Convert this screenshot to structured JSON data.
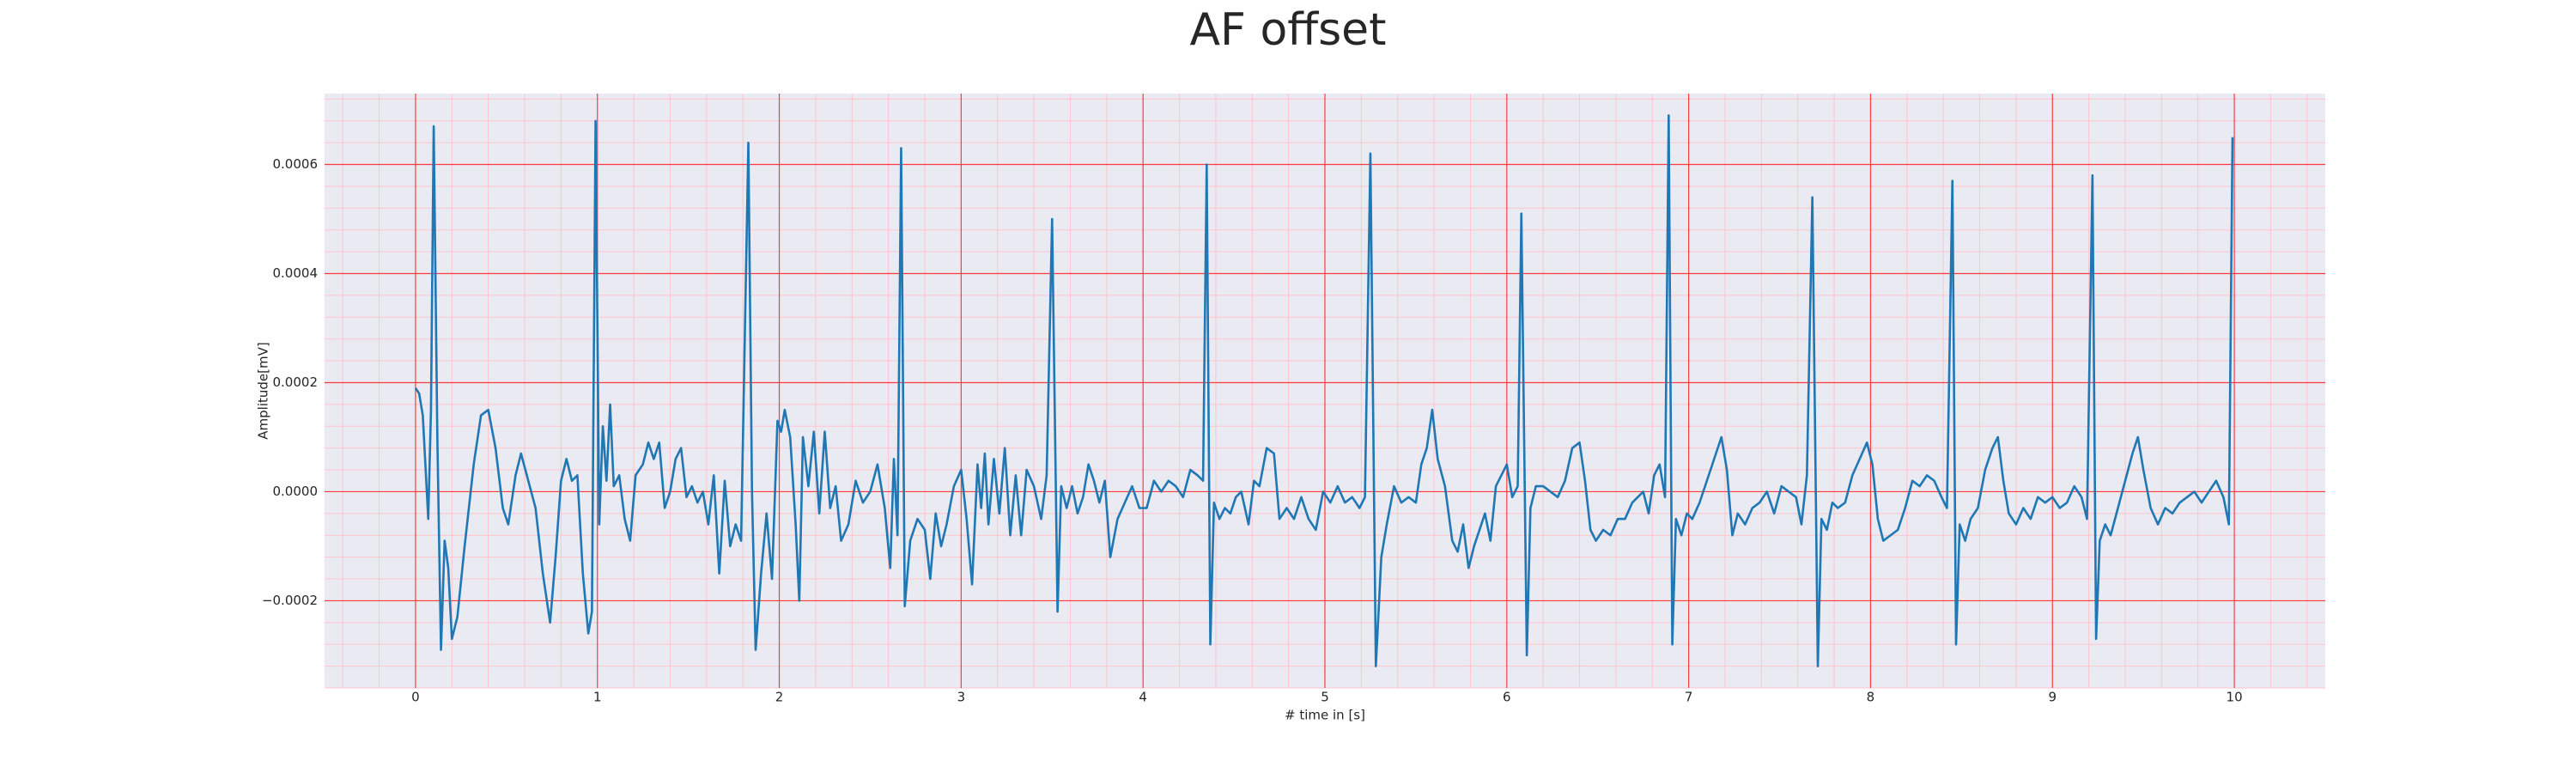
{
  "chart_data": {
    "type": "line",
    "title": "AF offset",
    "xlabel": "# time in [s]",
    "ylabel": "Amplitude[mV]",
    "color": "#1f77b4",
    "background": "#eaeaf2",
    "grid": true,
    "grid_color": "#ff3b3b",
    "minor_grid": true,
    "minor_grid_color": "#ffc4cc",
    "xlim": [
      -0.5,
      10.5
    ],
    "xticks": [
      0,
      1,
      2,
      3,
      4,
      5,
      6,
      7,
      8,
      9,
      10
    ],
    "ylim": [
      -0.00036,
      0.00073
    ],
    "yticks": [
      {
        "value": -0.0002,
        "label": "−0.0002"
      },
      {
        "value": 0,
        "label": "0.0000"
      },
      {
        "value": 0.0002,
        "label": "0.0002"
      },
      {
        "value": 0.0004,
        "label": "0.0004"
      },
      {
        "value": 0.0006,
        "label": "0.0006"
      }
    ],
    "x": [
      0.0,
      0.02,
      0.04,
      0.07,
      0.085,
      0.1,
      0.12,
      0.14,
      0.16,
      0.18,
      0.2,
      0.23,
      0.27,
      0.32,
      0.36,
      0.4,
      0.44,
      0.48,
      0.51,
      0.55,
      0.58,
      0.62,
      0.66,
      0.7,
      0.74,
      0.77,
      0.8,
      0.83,
      0.86,
      0.89,
      0.92,
      0.95,
      0.97,
      0.99,
      1.01,
      1.03,
      1.05,
      1.07,
      1.09,
      1.12,
      1.15,
      1.18,
      1.21,
      1.25,
      1.28,
      1.31,
      1.34,
      1.37,
      1.4,
      1.43,
      1.46,
      1.49,
      1.52,
      1.55,
      1.58,
      1.61,
      1.64,
      1.67,
      1.7,
      1.73,
      1.76,
      1.79,
      1.83,
      1.85,
      1.87,
      1.9,
      1.93,
      1.96,
      1.99,
      2.01,
      2.03,
      2.06,
      2.09,
      2.11,
      2.13,
      2.16,
      2.19,
      2.22,
      2.25,
      2.28,
      2.31,
      2.34,
      2.38,
      2.42,
      2.46,
      2.5,
      2.54,
      2.58,
      2.61,
      2.63,
      2.65,
      2.67,
      2.69,
      2.72,
      2.76,
      2.8,
      2.83,
      2.86,
      2.89,
      2.92,
      2.96,
      3.0,
      3.03,
      3.06,
      3.09,
      3.11,
      3.13,
      3.15,
      3.18,
      3.21,
      3.24,
      3.27,
      3.3,
      3.33,
      3.36,
      3.4,
      3.44,
      3.47,
      3.5,
      3.53,
      3.55,
      3.58,
      3.61,
      3.64,
      3.67,
      3.7,
      3.73,
      3.76,
      3.79,
      3.82,
      3.86,
      3.9,
      3.94,
      3.98,
      4.02,
      4.06,
      4.1,
      4.14,
      4.18,
      4.22,
      4.26,
      4.3,
      4.33,
      4.35,
      4.37,
      4.39,
      4.42,
      4.45,
      4.48,
      4.51,
      4.54,
      4.58,
      4.61,
      4.64,
      4.68,
      4.72,
      4.75,
      4.79,
      4.83,
      4.87,
      4.91,
      4.95,
      4.99,
      5.03,
      5.07,
      5.11,
      5.15,
      5.19,
      5.22,
      5.25,
      5.28,
      5.31,
      5.34,
      5.38,
      5.42,
      5.46,
      5.5,
      5.53,
      5.56,
      5.59,
      5.62,
      5.66,
      5.7,
      5.73,
      5.76,
      5.79,
      5.82,
      5.85,
      5.88,
      5.91,
      5.94,
      5.97,
      6.0,
      6.03,
      6.06,
      6.08,
      6.11,
      6.13,
      6.16,
      6.2,
      6.24,
      6.28,
      6.32,
      6.36,
      6.4,
      6.43,
      6.46,
      6.49,
      6.53,
      6.57,
      6.61,
      6.65,
      6.69,
      6.72,
      6.75,
      6.78,
      6.81,
      6.84,
      6.87,
      6.89,
      6.91,
      6.93,
      6.96,
      6.99,
      7.02,
      7.06,
      7.1,
      7.14,
      7.18,
      7.21,
      7.24,
      7.27,
      7.31,
      7.35,
      7.39,
      7.43,
      7.47,
      7.51,
      7.55,
      7.59,
      7.62,
      7.65,
      7.68,
      7.71,
      7.73,
      7.76,
      7.79,
      7.82,
      7.86,
      7.9,
      7.94,
      7.98,
      8.01,
      8.04,
      8.07,
      8.11,
      8.15,
      8.19,
      8.23,
      8.27,
      8.31,
      8.35,
      8.39,
      8.42,
      8.45,
      8.47,
      8.49,
      8.52,
      8.55,
      8.59,
      8.63,
      8.67,
      8.7,
      8.73,
      8.76,
      8.8,
      8.84,
      8.88,
      8.92,
      8.96,
      9.0,
      9.04,
      9.08,
      9.12,
      9.16,
      9.19,
      9.22,
      9.24,
      9.26,
      9.29,
      9.32,
      9.36,
      9.4,
      9.44,
      9.47,
      9.5,
      9.54,
      9.58,
      9.62,
      9.66,
      9.7,
      9.74,
      9.78,
      9.82,
      9.86,
      9.9,
      9.94,
      9.97,
      9.99
    ],
    "values": [
      0.00019,
      0.00018,
      0.00014,
      -5e-05,
      0.00015,
      0.00067,
      0.0001,
      -0.00029,
      -9e-05,
      -0.00014,
      -0.00027,
      -0.00023,
      -0.0001,
      5e-05,
      0.00014,
      0.00015,
      8e-05,
      -3e-05,
      -6e-05,
      3e-05,
      7e-05,
      2e-05,
      -3e-05,
      -0.00015,
      -0.00024,
      -0.00012,
      2e-05,
      6e-05,
      2e-05,
      3e-05,
      -0.00015,
      -0.00026,
      -0.00022,
      0.00068,
      -6e-05,
      0.00012,
      2e-05,
      0.00016,
      1e-05,
      3e-05,
      -5e-05,
      -9e-05,
      3e-05,
      5e-05,
      9e-05,
      6e-05,
      9e-05,
      -3e-05,
      0,
      6e-05,
      8e-05,
      -1e-05,
      1e-05,
      -2e-05,
      0,
      -6e-05,
      3e-05,
      -0.00015,
      2e-05,
      -0.0001,
      -6e-05,
      -9e-05,
      0.00064,
      0,
      -0.00029,
      -0.00015,
      -4e-05,
      -0.00016,
      0.00013,
      0.00011,
      0.00015,
      0.0001,
      -6e-05,
      -0.0002,
      0.0001,
      1e-05,
      0.00011,
      -4e-05,
      0.00011,
      -3e-05,
      1e-05,
      -9e-05,
      -6e-05,
      2e-05,
      -2e-05,
      0,
      5e-05,
      -3e-05,
      -0.00014,
      6e-05,
      -8e-05,
      0.00063,
      -0.00021,
      -9e-05,
      -5e-05,
      -7e-05,
      -0.00016,
      -4e-05,
      -0.0001,
      -6e-05,
      1e-05,
      4e-05,
      -5e-05,
      -0.00017,
      5e-05,
      -3e-05,
      7e-05,
      -6e-05,
      6e-05,
      -4e-05,
      8e-05,
      -8e-05,
      3e-05,
      -8e-05,
      4e-05,
      1e-05,
      -5e-05,
      3e-05,
      0.0005,
      -0.00022,
      1e-05,
      -3e-05,
      1e-05,
      -4e-05,
      -1e-05,
      5e-05,
      2e-05,
      -2e-05,
      2e-05,
      -0.00012,
      -5e-05,
      -2e-05,
      1e-05,
      -3e-05,
      -3e-05,
      2e-05,
      0,
      2e-05,
      1e-05,
      -1e-05,
      4e-05,
      3e-05,
      2e-05,
      0.0006,
      -0.00028,
      -2e-05,
      -5e-05,
      -3e-05,
      -4e-05,
      -1e-05,
      0,
      -6e-05,
      2e-05,
      1e-05,
      8e-05,
      7e-05,
      -5e-05,
      -3e-05,
      -5e-05,
      -1e-05,
      -5e-05,
      -7e-05,
      0,
      -2e-05,
      1e-05,
      -2e-05,
      -1e-05,
      -3e-05,
      -1e-05,
      0.00062,
      -0.00032,
      -0.00012,
      -6e-05,
      1e-05,
      -2e-05,
      -1e-05,
      -2e-05,
      5e-05,
      8e-05,
      0.00015,
      6e-05,
      1e-05,
      -9e-05,
      -0.00011,
      -6e-05,
      -0.00014,
      -0.0001,
      -7e-05,
      -4e-05,
      -9e-05,
      1e-05,
      3e-05,
      5e-05,
      -1e-05,
      1e-05,
      0.00051,
      -0.0003,
      -3e-05,
      1e-05,
      1e-05,
      0,
      -1e-05,
      2e-05,
      8e-05,
      9e-05,
      2e-05,
      -7e-05,
      -9e-05,
      -7e-05,
      -8e-05,
      -5e-05,
      -5e-05,
      -2e-05,
      -1e-05,
      0,
      -4e-05,
      3e-05,
      5e-05,
      -1e-05,
      0.00069,
      -0.00028,
      -5e-05,
      -8e-05,
      -4e-05,
      -5e-05,
      -2e-05,
      2e-05,
      6e-05,
      0.0001,
      4e-05,
      -8e-05,
      -4e-05,
      -6e-05,
      -3e-05,
      -2e-05,
      0,
      -4e-05,
      1e-05,
      0,
      -1e-05,
      -6e-05,
      3e-05,
      0.00054,
      -0.00032,
      -5e-05,
      -7e-05,
      -2e-05,
      -3e-05,
      -2e-05,
      3e-05,
      6e-05,
      9e-05,
      5e-05,
      -5e-05,
      -9e-05,
      -8e-05,
      -7e-05,
      -3e-05,
      2e-05,
      1e-05,
      3e-05,
      2e-05,
      -1e-05,
      -3e-05,
      0.00057,
      -0.00028,
      -6e-05,
      -9e-05,
      -5e-05,
      -3e-05,
      4e-05,
      8e-05,
      0.0001,
      2e-05,
      -4e-05,
      -6e-05,
      -3e-05,
      -5e-05,
      -1e-05,
      -2e-05,
      -1e-05,
      -3e-05,
      -2e-05,
      1e-05,
      -1e-05,
      -5e-05,
      0.00058,
      -0.00027,
      -9e-05,
      -6e-05,
      -8e-05,
      -3e-05,
      2e-05,
      7e-05,
      0.0001,
      4e-05,
      -3e-05,
      -6e-05,
      -3e-05,
      -4e-05,
      -2e-05,
      -1e-05,
      0,
      -2e-05,
      0,
      2e-05,
      -1e-05,
      -6e-05,
      0.00065
    ]
  }
}
